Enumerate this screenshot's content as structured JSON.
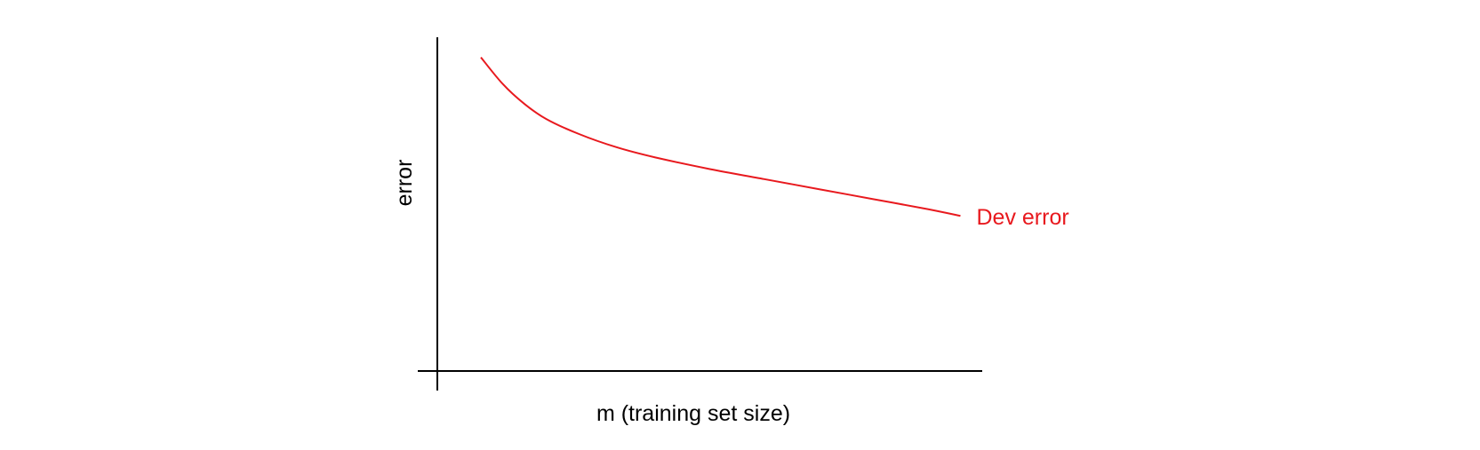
{
  "chart_data": {
    "type": "line",
    "title": "",
    "xlabel": "m (training set size)",
    "ylabel": "error",
    "xlim": [
      0,
      10
    ],
    "ylim": [
      0,
      10
    ],
    "grid": false,
    "axis_ticks": false,
    "series": [
      {
        "name": "Dev error",
        "color": "#e8191e",
        "x": [
          0.8,
          1.2,
          1.6,
          2.0,
          2.6,
          3.3,
          4.0,
          5.0,
          6.0,
          7.0,
          8.0,
          9.0,
          9.6
        ],
        "y": [
          9.4,
          8.6,
          8.0,
          7.55,
          7.1,
          6.7,
          6.4,
          6.05,
          5.75,
          5.45,
          5.15,
          4.85,
          4.65
        ]
      }
    ]
  }
}
